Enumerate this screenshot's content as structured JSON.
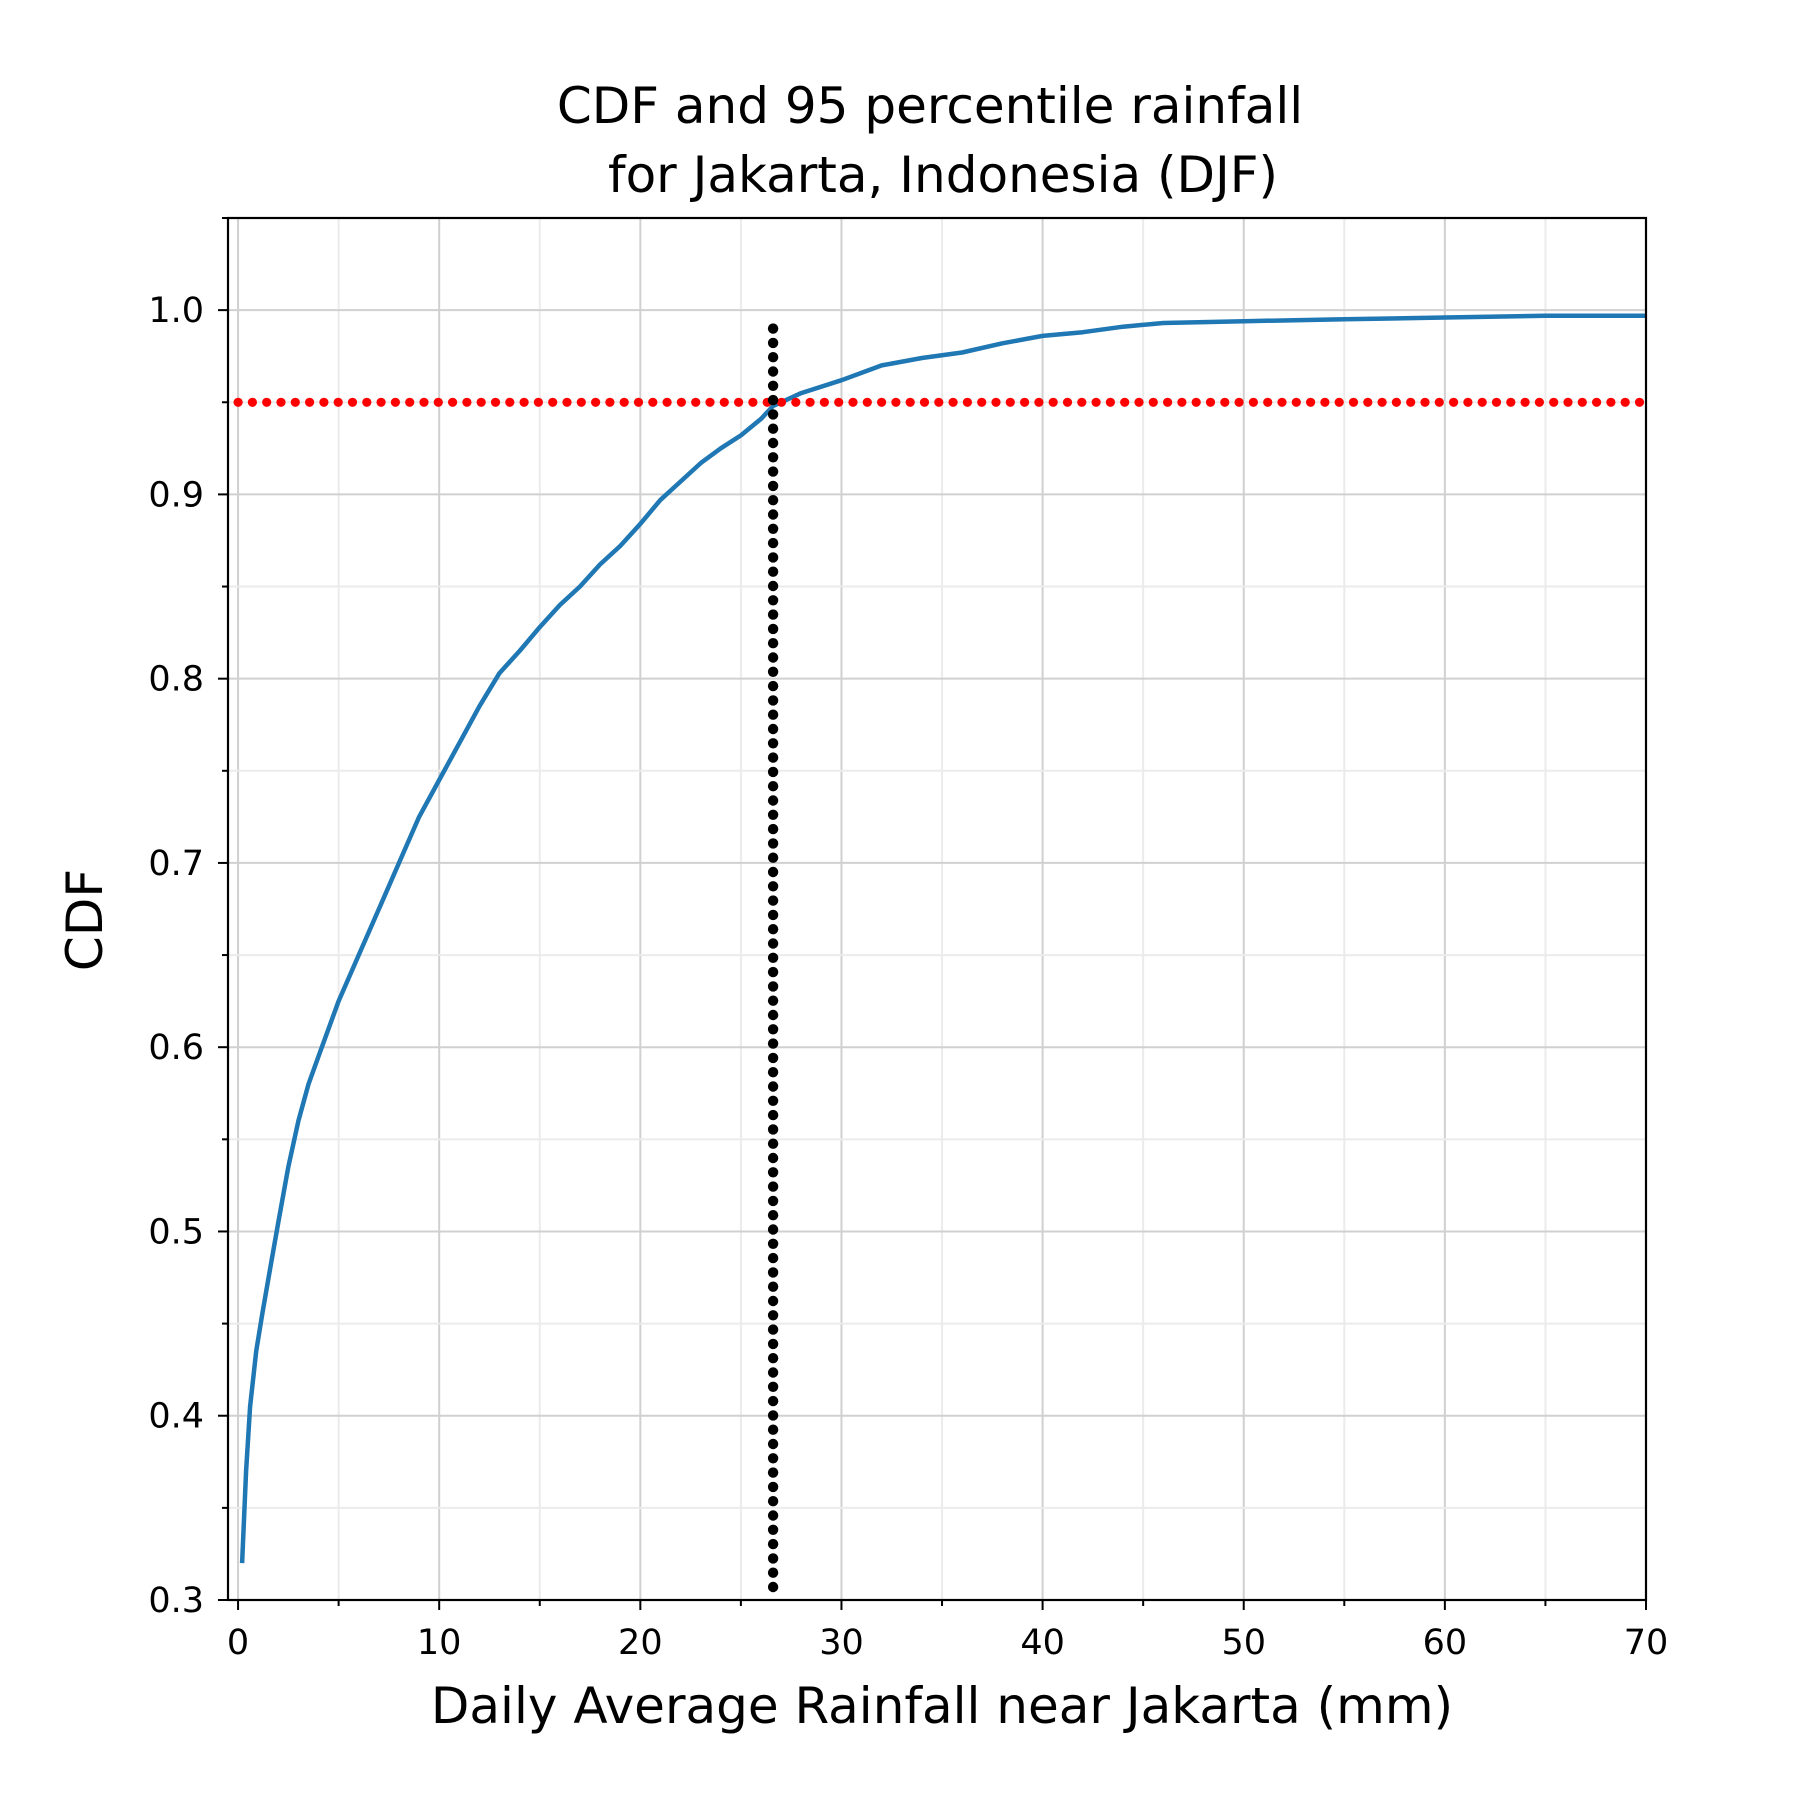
{
  "chart_data": {
    "type": "line",
    "title": "CDF and 95 percentile rainfall\n for Jakarta, Indonesia (DJF)",
    "title_lines": [
      "CDF and 95 percentile rainfall",
      "for Jakarta, Indonesia (DJF)"
    ],
    "xlabel": "Daily Average Rainfall near Jakarta (mm)",
    "ylabel": "CDF",
    "xlim": [
      -0.5,
      70
    ],
    "ylim": [
      0.3,
      1.05
    ],
    "xticks": [
      0,
      10,
      20,
      30,
      40,
      50,
      60,
      70
    ],
    "xtick_labels": [
      "0",
      "10",
      "20",
      "30",
      "40",
      "50",
      "60",
      "70"
    ],
    "yticks": [
      0.3,
      0.4,
      0.5,
      0.6,
      0.7,
      0.8,
      0.9,
      1.0
    ],
    "ytick_labels": [
      "0.3",
      "0.4",
      "0.5",
      "0.6",
      "0.7",
      "0.8",
      "0.9",
      "1.0"
    ],
    "x_minor_step": 5,
    "y_minor_step": 0.05,
    "grid": true,
    "series": [
      {
        "kind": "line",
        "color": "#1f77b4",
        "x": [
          0.2,
          0.4,
          0.6,
          0.9,
          1.2,
          1.6,
          2.0,
          2.5,
          3.0,
          3.5,
          4.0,
          5.0,
          6.0,
          7.0,
          8.0,
          9.0,
          10.0,
          11.0,
          12.0,
          13.0,
          14.0,
          15.0,
          16.0,
          17.0,
          18.0,
          19.0,
          20.0,
          21.0,
          22.0,
          23.0,
          24.0,
          25.0,
          26.0,
          26.6,
          28.0,
          30.0,
          32.0,
          34.0,
          36.0,
          38.0,
          40.0,
          42.0,
          44.0,
          46.0,
          50.0,
          55.0,
          60.0,
          65.0,
          70.0
        ],
        "y": [
          0.32,
          0.37,
          0.405,
          0.435,
          0.455,
          0.48,
          0.505,
          0.535,
          0.56,
          0.58,
          0.595,
          0.625,
          0.65,
          0.675,
          0.7,
          0.725,
          0.745,
          0.765,
          0.785,
          0.803,
          0.815,
          0.828,
          0.84,
          0.85,
          0.862,
          0.872,
          0.884,
          0.897,
          0.907,
          0.917,
          0.925,
          0.932,
          0.941,
          0.948,
          0.955,
          0.962,
          0.97,
          0.974,
          0.977,
          0.982,
          0.986,
          0.988,
          0.991,
          0.993,
          0.994,
          0.995,
          0.996,
          0.997,
          0.997
        ]
      },
      {
        "kind": "dotted-horizontal",
        "color": "#ff0000",
        "y": 0.95,
        "x_range": [
          0,
          70
        ]
      },
      {
        "kind": "dotted-vertical",
        "color": "#000000",
        "x": 26.6,
        "y_range": [
          0.3,
          0.99
        ]
      }
    ]
  }
}
